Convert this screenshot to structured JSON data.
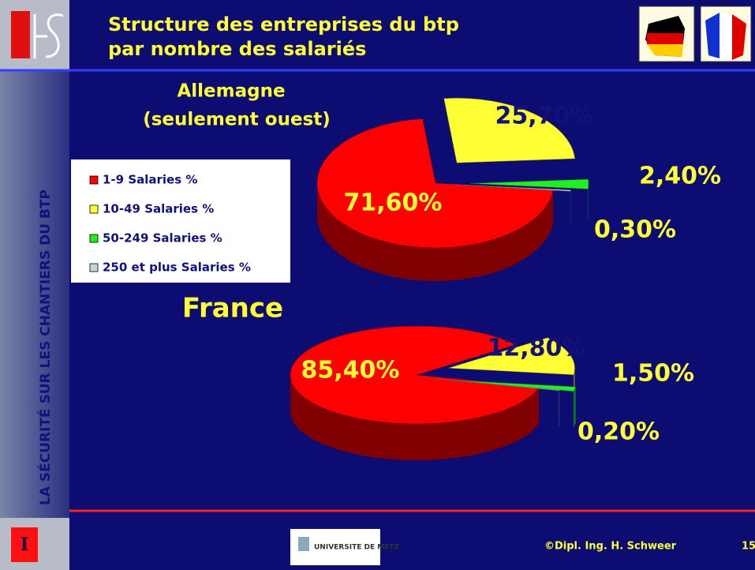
{
  "slide": {
    "title_lines": [
      "Structure des entreprises du btp",
      "par nombre des salariés"
    ],
    "side_text": "LA SÉCURITÉ SUR LES CHANTIERS DU BTP",
    "section": "I",
    "university": "UNIVERSITE DE METZ",
    "author": "©Dipl. Ing. H. Schweer",
    "page": "15"
  },
  "chart_data": [
    {
      "type": "pie3d",
      "title": "Allemagne",
      "subtitle": "(seulement ouest)",
      "categories": [
        "1-9 Salaries %",
        "10-49 Salaries %",
        "50-249 Salaries %",
        "250 et plus Salaries %"
      ],
      "values": [
        71.6,
        25.7,
        2.4,
        0.3
      ],
      "value_labels": [
        "71,60%",
        "25,70%",
        "2,40%",
        "0,30%"
      ],
      "colors": [
        "#ff0000",
        "#ffff33",
        "#22ee22",
        "#c8d4dc"
      ],
      "legend": "left"
    },
    {
      "type": "pie3d",
      "title": "France",
      "values": [
        85.4,
        12.8,
        1.5,
        0.2
      ],
      "value_labels": [
        "85,40%",
        "12,80%",
        "1,50%",
        "0,20%"
      ],
      "colors": [
        "#ff0000",
        "#ffff33",
        "#22ee22",
        "#c8d4dc"
      ]
    }
  ]
}
